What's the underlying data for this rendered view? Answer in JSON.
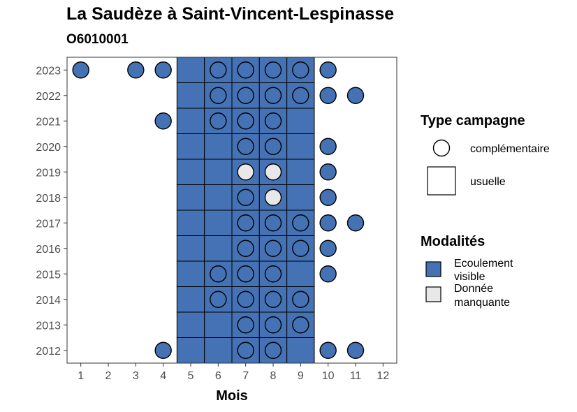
{
  "title": "La Saudèze à Saint-Vincent-Lespinasse",
  "subtitle": "O6010001",
  "colors": {
    "visible": "#4472b4",
    "missing": "#e8e8e8",
    "stroke": "#000000",
    "panel_border": "#333333"
  },
  "chart_data": {
    "type": "scatter",
    "title": "La Saudèze à Saint-Vincent-Lespinasse",
    "subtitle": "O6010001",
    "xlabel": "Mois",
    "ylabel": "",
    "x_ticks": [
      1,
      2,
      3,
      4,
      5,
      6,
      7,
      8,
      9,
      10,
      11,
      12
    ],
    "y_ticks": [
      2012,
      2013,
      2014,
      2015,
      2016,
      2017,
      2018,
      2019,
      2020,
      2021,
      2022,
      2023
    ],
    "xlim": [
      0.5,
      12.5
    ],
    "ylim": [
      2011.5,
      2023.5
    ],
    "grid": false,
    "legend_position": "right",
    "legends": [
      {
        "title": "Type campagne",
        "items": [
          {
            "key": "complementaire",
            "label": "complémentaire",
            "shape": "circle"
          },
          {
            "key": "usuelle",
            "label": "usuelle",
            "shape": "square"
          }
        ]
      },
      {
        "title": "Modalités",
        "items": [
          {
            "key": "visible",
            "label_lines": [
              "Ecoulement",
              "visible"
            ],
            "color": "#4472b4"
          },
          {
            "key": "missing",
            "label_lines": [
              "Donnée",
              "manquante"
            ],
            "color": "#e8e8e8"
          }
        ]
      }
    ],
    "usuelle": {
      "months": [
        5,
        6,
        7,
        8,
        9
      ],
      "years": [
        2012,
        2013,
        2014,
        2015,
        2016,
        2017,
        2018,
        2019,
        2020,
        2021,
        2022,
        2023
      ],
      "modalite": "Ecoulement visible"
    },
    "complementaire": [
      {
        "year": 2023,
        "month": 1,
        "modalite": "visible"
      },
      {
        "year": 2023,
        "month": 3,
        "modalite": "visible"
      },
      {
        "year": 2023,
        "month": 4,
        "modalite": "visible"
      },
      {
        "year": 2023,
        "month": 6,
        "modalite": "visible"
      },
      {
        "year": 2023,
        "month": 7,
        "modalite": "visible"
      },
      {
        "year": 2023,
        "month": 8,
        "modalite": "visible"
      },
      {
        "year": 2023,
        "month": 9,
        "modalite": "visible"
      },
      {
        "year": 2023,
        "month": 10,
        "modalite": "visible"
      },
      {
        "year": 2022,
        "month": 6,
        "modalite": "visible"
      },
      {
        "year": 2022,
        "month": 7,
        "modalite": "visible"
      },
      {
        "year": 2022,
        "month": 8,
        "modalite": "visible"
      },
      {
        "year": 2022,
        "month": 9,
        "modalite": "visible"
      },
      {
        "year": 2022,
        "month": 10,
        "modalite": "visible"
      },
      {
        "year": 2022,
        "month": 11,
        "modalite": "visible"
      },
      {
        "year": 2021,
        "month": 4,
        "modalite": "visible"
      },
      {
        "year": 2021,
        "month": 6,
        "modalite": "visible"
      },
      {
        "year": 2021,
        "month": 7,
        "modalite": "visible"
      },
      {
        "year": 2021,
        "month": 8,
        "modalite": "visible"
      },
      {
        "year": 2020,
        "month": 7,
        "modalite": "visible"
      },
      {
        "year": 2020,
        "month": 8,
        "modalite": "visible"
      },
      {
        "year": 2020,
        "month": 10,
        "modalite": "visible"
      },
      {
        "year": 2019,
        "month": 7,
        "modalite": "missing"
      },
      {
        "year": 2019,
        "month": 8,
        "modalite": "missing"
      },
      {
        "year": 2019,
        "month": 10,
        "modalite": "visible"
      },
      {
        "year": 2018,
        "month": 7,
        "modalite": "visible"
      },
      {
        "year": 2018,
        "month": 8,
        "modalite": "missing"
      },
      {
        "year": 2018,
        "month": 10,
        "modalite": "visible"
      },
      {
        "year": 2017,
        "month": 7,
        "modalite": "visible"
      },
      {
        "year": 2017,
        "month": 8,
        "modalite": "visible"
      },
      {
        "year": 2017,
        "month": 9,
        "modalite": "visible"
      },
      {
        "year": 2017,
        "month": 10,
        "modalite": "visible"
      },
      {
        "year": 2017,
        "month": 11,
        "modalite": "visible"
      },
      {
        "year": 2016,
        "month": 7,
        "modalite": "visible"
      },
      {
        "year": 2016,
        "month": 8,
        "modalite": "visible"
      },
      {
        "year": 2016,
        "month": 9,
        "modalite": "visible"
      },
      {
        "year": 2016,
        "month": 10,
        "modalite": "visible"
      },
      {
        "year": 2015,
        "month": 6,
        "modalite": "visible"
      },
      {
        "year": 2015,
        "month": 7,
        "modalite": "visible"
      },
      {
        "year": 2015,
        "month": 8,
        "modalite": "visible"
      },
      {
        "year": 2015,
        "month": 10,
        "modalite": "visible"
      },
      {
        "year": 2014,
        "month": 6,
        "modalite": "visible"
      },
      {
        "year": 2014,
        "month": 7,
        "modalite": "visible"
      },
      {
        "year": 2014,
        "month": 8,
        "modalite": "visible"
      },
      {
        "year": 2014,
        "month": 9,
        "modalite": "visible"
      },
      {
        "year": 2013,
        "month": 7,
        "modalite": "visible"
      },
      {
        "year": 2013,
        "month": 8,
        "modalite": "visible"
      },
      {
        "year": 2013,
        "month": 9,
        "modalite": "visible"
      },
      {
        "year": 2012,
        "month": 4,
        "modalite": "visible"
      },
      {
        "year": 2012,
        "month": 7,
        "modalite": "visible"
      },
      {
        "year": 2012,
        "month": 8,
        "modalite": "visible"
      },
      {
        "year": 2012,
        "month": 10,
        "modalite": "visible"
      },
      {
        "year": 2012,
        "month": 11,
        "modalite": "visible"
      }
    ]
  }
}
